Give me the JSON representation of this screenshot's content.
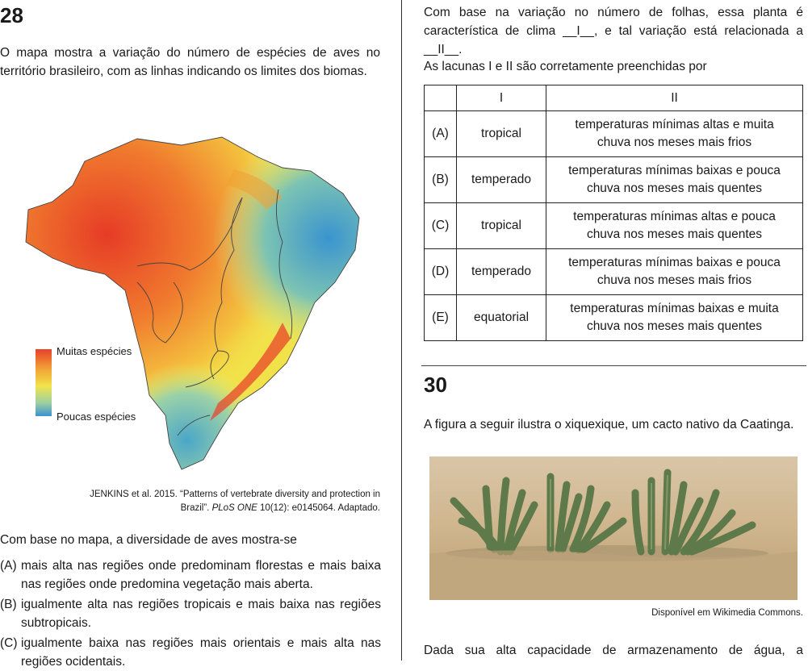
{
  "q28": {
    "number": "28",
    "intro": "O mapa mostra a variação do número de espécies de aves no território brasileiro, com as linhas indicando os limites dos biomas.",
    "legend": {
      "high": "Muitas espécies",
      "low": "Poucas espécies"
    },
    "citation_line1": "JENKINS et al. 2015. “Patterns of vertebrate diversity and protection in",
    "citation_line2_pre": "Brazil”. ",
    "citation_line2_journal": "PLoS ONE",
    "citation_line2_post": " 10(12): e0145064. Adaptado.",
    "stem": "Com base no mapa, a diversidade de aves mostra-se",
    "options": [
      {
        "letter": "(A)",
        "text": "mais alta nas regiões onde predominam florestas e mais baixa nas regiões onde predomina vegetação mais aberta."
      },
      {
        "letter": "(B)",
        "text": "igualmente alta nas regiões tropicais e mais baixa nas regiões subtropicais."
      },
      {
        "letter": "(C)",
        "text": "igualmente baixa nas regiões mais orientais e mais alta nas regiões ocidentais."
      }
    ]
  },
  "q29": {
    "text_line1": "Com base na variação no número de folhas, essa planta é",
    "text_line2_pre": "característica de clima ",
    "blank1": "__I__",
    "text_line2_post": ", e tal variação está relacionada a",
    "blank2": "__II__",
    "text_line3_post": ".",
    "prompt": "As lacunas I e II são corretamente preenchidas por",
    "table": {
      "header": [
        "",
        "I",
        "II"
      ],
      "rows": [
        {
          "letter": "(A)",
          "i": "tropical",
          "ii_line1": "temperaturas mínimas altas e muita",
          "ii_line2": "chuva nos meses mais frios"
        },
        {
          "letter": "(B)",
          "i": "temperado",
          "ii_line1": "temperaturas mínimas baixas e pouca",
          "ii_line2": "chuva nos meses mais quentes"
        },
        {
          "letter": "(C)",
          "i": "tropical",
          "ii_line1": "temperaturas mínimas altas e pouca",
          "ii_line2": "chuva nos meses mais quentes"
        },
        {
          "letter": "(D)",
          "i": "temperado",
          "ii_line1": "temperaturas mínimas baixas e pouca",
          "ii_line2": "chuva nos meses mais frios"
        },
        {
          "letter": "(E)",
          "i": "equatorial",
          "ii_line1": "temperaturas mínimas baixas e muita",
          "ii_line2": "chuva nos meses mais quentes"
        }
      ]
    }
  },
  "q30": {
    "number": "30",
    "intro": "A figura a seguir ilustra o xiquexique, um cacto nativo da Caatinga.",
    "photo_credit": "Disponível em Wikimedia Commons.",
    "continuation": "Dada sua alta capacidade de armazenamento de água, a"
  },
  "colors": {
    "map_high": "#e8402a",
    "map_mid": "#f3e64a",
    "map_low": "#3a9ad0",
    "rule": "#444444"
  }
}
